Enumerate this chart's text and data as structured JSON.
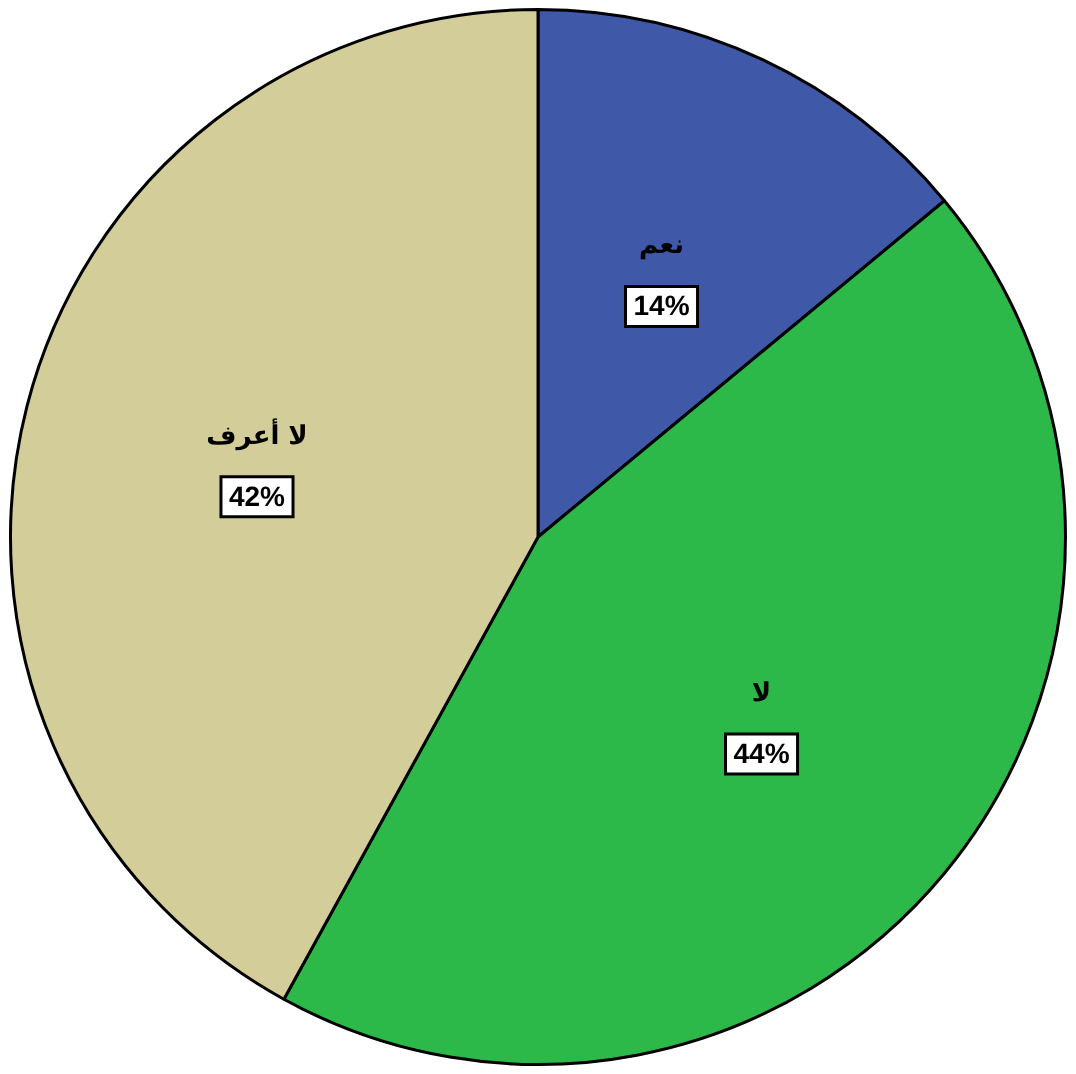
{
  "chart_data": {
    "type": "pie",
    "categories": [
      "نعم",
      "لا",
      "لا أعرف"
    ],
    "values": [
      14,
      44,
      42
    ],
    "colors": [
      "#3f58a8",
      "#2db84a",
      "#d3cd9a"
    ],
    "value_labels": [
      "14%",
      "44%",
      "42%"
    ],
    "legend": false
  }
}
